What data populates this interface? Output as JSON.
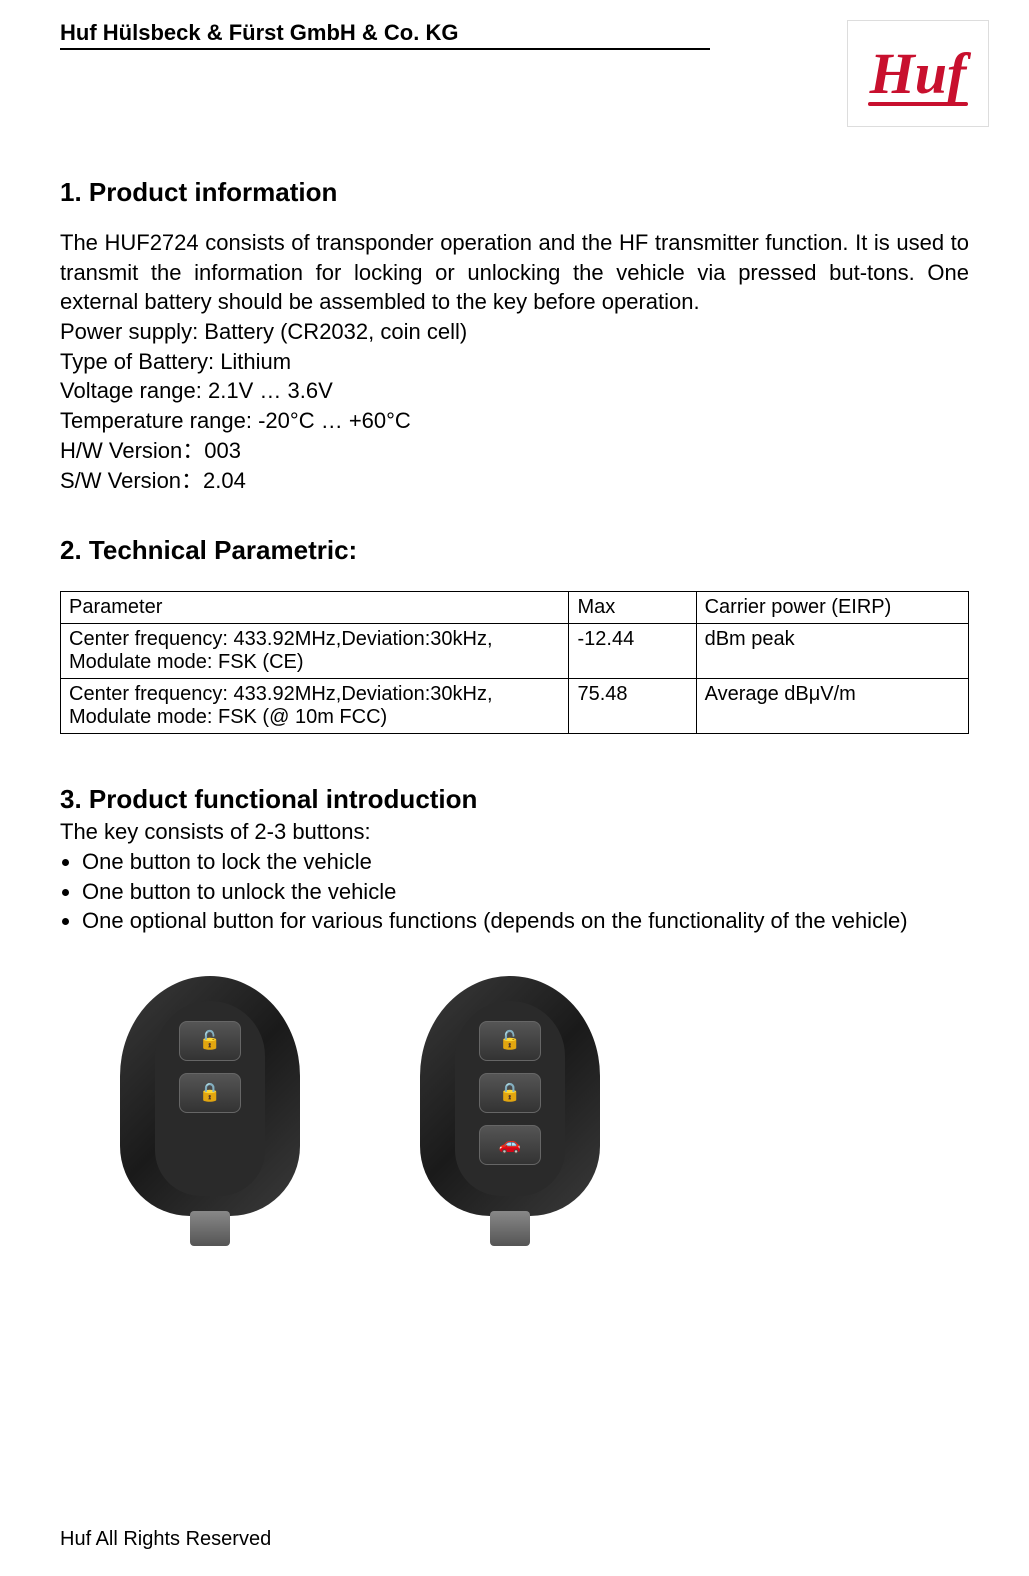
{
  "header": {
    "company_name": "Huf Hülsbeck & Fürst GmbH & Co. KG",
    "logo_text": "Huf",
    "logo_color": "#c8102e"
  },
  "section1": {
    "title": "1.  Product information",
    "description": "The HUF2724 consists of transponder operation and the HF transmitter function. It is used to transmit the information for locking or unlocking the vehicle via pressed but-tons. One external battery should be assembled to the key before operation.",
    "specs": {
      "power_supply": "Power supply: Battery (CR2032, coin cell)",
      "battery_type": "Type of Battery: Lithium",
      "voltage_range": "Voltage range: 2.1V … 3.6V",
      "temp_range": "Temperature range: -20°C … +60°C",
      "hw_version": "H/W Version：003",
      "sw_version": "S/W Version：2.04"
    }
  },
  "section2": {
    "title": "2.  Technical Parametric:",
    "table": {
      "columns": [
        "Parameter",
        "Max",
        "Carrier power (EIRP)"
      ],
      "rows": [
        [
          "Center frequency: 433.92MHz,Deviation:30kHz, Modulate mode: FSK (CE)",
          "-12.44",
          "dBm peak"
        ],
        [
          "Center frequency: 433.92MHz,Deviation:30kHz, Modulate mode: FSK (@ 10m FCC)",
          "75.48",
          "Average dBμV/m"
        ]
      ]
    }
  },
  "section3": {
    "title": "3.  Product functional introduction",
    "intro": "The key consists of 2-3 buttons:",
    "bullets": [
      "One button to lock the vehicle",
      "One button to unlock the vehicle",
      "One optional button for various functions (depends on the functionality of the vehicle)"
    ],
    "keys": [
      {
        "buttons": [
          "🔓",
          "🔒"
        ]
      },
      {
        "buttons": [
          "🔓",
          "🔒",
          "🚗"
        ]
      }
    ]
  },
  "footer": {
    "text": "Huf All Rights Reserved"
  }
}
